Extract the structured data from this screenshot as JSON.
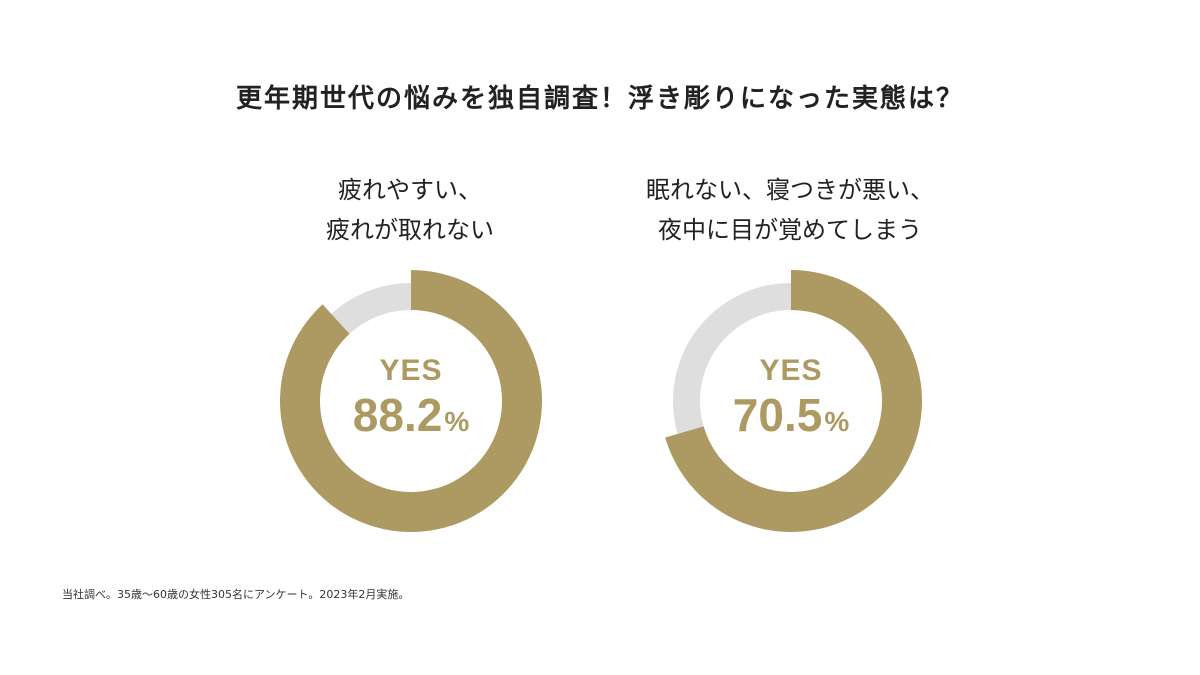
{
  "title": "更年期世代の悩みを独自調査！浮き彫りになった実態は？",
  "footnote": "当社調べ。35歳〜60歳の女性305名にアンケート。2023年2月実施。",
  "colors": {
    "accent": "#ad9a63",
    "remainder": "#dedede"
  },
  "chart_data": [
    {
      "type": "pie",
      "title_lines": [
        "疲れやすい、",
        "疲れが取れない"
      ],
      "center_label": "YES",
      "value": 88.2,
      "value_text": "88.2",
      "unit": "%",
      "slices": [
        {
          "label": "YES",
          "value": 88.2
        },
        {
          "label": "",
          "value": 11.8
        }
      ]
    },
    {
      "type": "pie",
      "title_lines": [
        "眠れない、寝つきが悪い、",
        "夜中に目が覚めてしまう"
      ],
      "center_label": "YES",
      "value": 70.5,
      "value_text": "70.5",
      "unit": "%",
      "slices": [
        {
          "label": "YES",
          "value": 70.5
        },
        {
          "label": "",
          "value": 29.5
        }
      ]
    }
  ]
}
